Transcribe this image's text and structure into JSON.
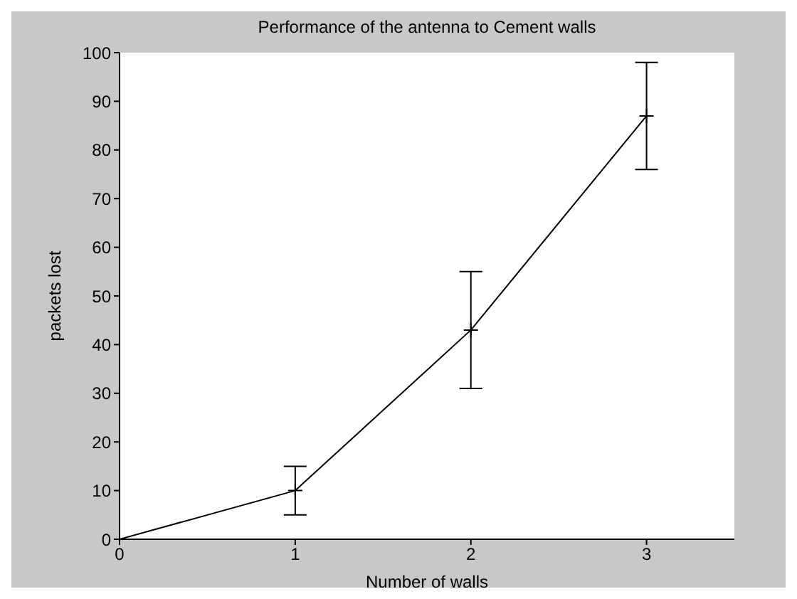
{
  "chart_data": {
    "type": "line",
    "title": "Performance of the antenna to Cement walls",
    "xlabel": "Number of walls",
    "ylabel": "packets lost",
    "x": [
      0,
      1,
      2,
      3
    ],
    "series": [
      {
        "color": "#000000",
        "values": [
          0,
          10,
          43,
          87
        ],
        "errors": [
          null,
          5,
          12,
          11
        ]
      }
    ],
    "xlim": [
      0,
      3.5
    ],
    "xticks": [
      0,
      1,
      2,
      3
    ],
    "ylim": [
      0,
      100
    ],
    "yticks": [
      0,
      10,
      20,
      30,
      40,
      50,
      60,
      70,
      80,
      90,
      100
    ],
    "grid": false,
    "legend": false,
    "marker": "cross",
    "line_style": "solid"
  }
}
